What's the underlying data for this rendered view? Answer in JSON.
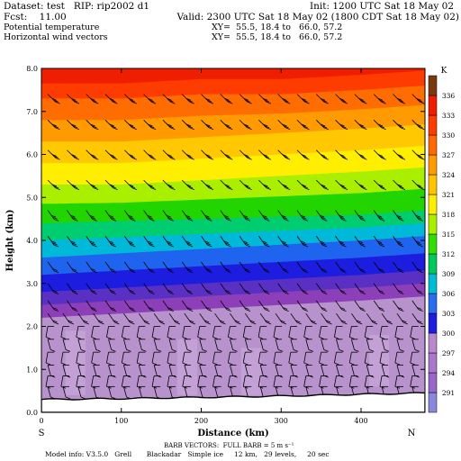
{
  "header": {
    "dataset": "Dataset: test   RIP: rip2002 d1",
    "init": "Init: 1200 UTC Sat 18 May 02",
    "fcst": "Fcst:    11.00",
    "valid": "Valid: 2300 UTC Sat 18 May 02 (1800 CDT Sat 18 May 02)",
    "field1": "Potential temperature",
    "xy1": "XY=  55.5, 18.4 to   66.0, 57.2",
    "field2": "Horizontal wind vectors",
    "xy2": "XY=  55.5, 18.4 to   66.0, 57.2"
  },
  "footer": {
    "barb": "BARB VECTORS:  FULL BARB = 5 m s⁻¹",
    "model": "Model info: V3.5.0   Grell       Blackadar   Simple ice     12 km,   29 levels,     20 sec"
  },
  "direction": {
    "left": "S",
    "right": "N"
  },
  "chart_data": {
    "type": "heatmap",
    "title": "Potential temperature",
    "xlabel": "Distance (km)",
    "ylabel": "Height (km)",
    "xlim": [
      0,
      480
    ],
    "ylim": [
      0,
      8
    ],
    "xticks": [
      "0",
      "100",
      "200",
      "300",
      "400"
    ],
    "yticks": [
      "0.0",
      "1.0",
      "2.0",
      "3.0",
      "4.0",
      "5.0",
      "6.0",
      "7.0",
      "8.0"
    ],
    "colorbar": {
      "unit": "K",
      "levels": [
        291,
        294,
        297,
        300,
        303,
        306,
        309,
        312,
        315,
        318,
        321,
        324,
        327,
        330,
        333,
        336
      ],
      "labels": [
        "291",
        "294",
        "297",
        "300",
        "303",
        "306",
        "309",
        "312",
        "315",
        "318",
        "321",
        "324",
        "327",
        "330",
        "333",
        "336"
      ],
      "colors": [
        "#8888dd",
        "#9966cc",
        "#aa77cc",
        "#bb88cc",
        "#1d1de0",
        "#2a6ef0",
        "#00bcd4",
        "#00c85a",
        "#33dd00",
        "#aaee00",
        "#ffee00",
        "#ffc400",
        "#ff9a00",
        "#ff6a00",
        "#ff3c00",
        "#f01e00",
        "#7a3a10"
      ]
    },
    "isentropes_height_km": {
      "x_km": [
        0,
        100,
        200,
        300,
        400,
        480
      ],
      "theta_300": [
        2.2,
        2.3,
        2.4,
        2.5,
        2.6,
        2.7
      ],
      "theta_303": [
        2.8,
        2.9,
        3.0,
        3.1,
        3.2,
        3.3
      ],
      "theta_309": [
        3.6,
        3.7,
        3.8,
        3.9,
        4.0,
        4.1
      ],
      "theta_315": [
        4.4,
        4.45,
        4.5,
        4.55,
        4.6,
        4.7
      ],
      "theta_321": [
        5.3,
        5.3,
        5.4,
        5.5,
        5.6,
        5.7
      ],
      "theta_327": [
        6.3,
        6.3,
        6.4,
        6.5,
        6.6,
        6.7
      ],
      "theta_333": [
        7.3,
        7.3,
        7.4,
        7.4,
        7.5,
        7.6
      ]
    },
    "terrain_height_km": {
      "x_km": [
        0,
        100,
        200,
        300,
        400,
        480
      ],
      "z": [
        0.3,
        0.32,
        0.35,
        0.38,
        0.42,
        0.45
      ]
    },
    "wind_barb_levels_km": [
      0.6,
      0.85,
      1.1,
      1.4,
      1.7,
      2.0,
      2.3,
      2.6,
      3.0,
      3.5,
      4.1,
      4.7,
      5.4,
      6.1,
      6.8,
      7.4
    ]
  }
}
